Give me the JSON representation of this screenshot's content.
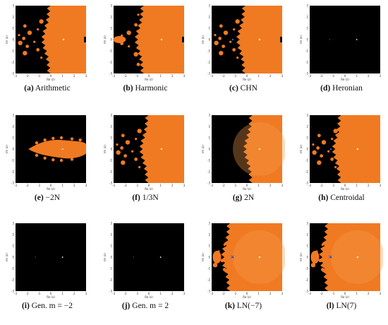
{
  "figure": {
    "axis_labels": {
      "x": "Re (z)",
      "y": "Im (z)"
    },
    "x_ticks": [
      "-3",
      "-2",
      "-1",
      "0",
      "1",
      "2",
      "3"
    ],
    "y_ticks": [
      "3",
      "2",
      "1",
      "0",
      "-1",
      "-2",
      "-3"
    ],
    "colors": {
      "basin": "#f07a22",
      "basin_light": "#f79a4a",
      "background": "#000000",
      "blue": "#3b55d6"
    },
    "panels": [
      {
        "label": "(a)",
        "caption": "Arithmetic",
        "style": "arith"
      },
      {
        "label": "(b)",
        "caption": "Harmonic",
        "style": "harm"
      },
      {
        "label": "(c)",
        "caption": "CHN",
        "style": "chn"
      },
      {
        "label": "(d)",
        "caption": "Heronian",
        "style": "dark"
      },
      {
        "label": "(e)",
        "caption": "−2N",
        "style": "neg2n"
      },
      {
        "label": "(f)",
        "caption": "1/3N",
        "style": "third"
      },
      {
        "label": "(g)",
        "caption": "2N",
        "style": "twon"
      },
      {
        "label": "(h)",
        "caption": "Centroidal",
        "style": "centroid"
      },
      {
        "label": "(i)",
        "caption": "Gen. m = −2",
        "style": "dark"
      },
      {
        "label": "(j)",
        "caption": "Gen. m = 2",
        "style": "dark"
      },
      {
        "label": "(k)",
        "caption": "LN(−7)",
        "style": "ln"
      },
      {
        "label": "(l)",
        "caption": "LN(7)",
        "style": "ln"
      }
    ]
  }
}
